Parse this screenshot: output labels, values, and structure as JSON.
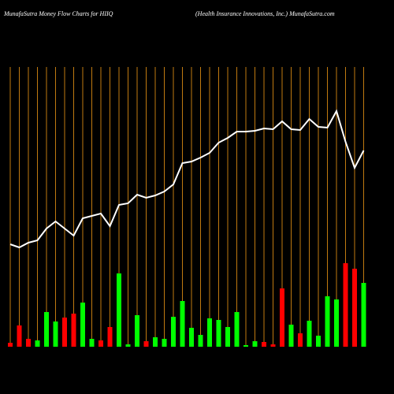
{
  "chart_data": {
    "type": "money-flow",
    "title": "MunafaSutra  Money Flow  Charts for HIIQ",
    "subtitle": "(Health Insurance   Innovations,  Inc.) MunafaSutra.com",
    "ylim": [
      0,
      355
    ],
    "grid_color": "#c07a10",
    "line_color": "#ffffff",
    "line": [
      130,
      126,
      132,
      135,
      150,
      159,
      150,
      141,
      163,
      166,
      169,
      153,
      180,
      182,
      193,
      189,
      192,
      197,
      206,
      233,
      235,
      240,
      246,
      259,
      265,
      273,
      273,
      274,
      277,
      276,
      286,
      276,
      275,
      289,
      279,
      278,
      299,
      260,
      227,
      249
    ],
    "bars": [
      5,
      27,
      10,
      8,
      44,
      32,
      37,
      42,
      56,
      10,
      8,
      25,
      93,
      3,
      40,
      7,
      12,
      10,
      38,
      58,
      24,
      15,
      36,
      34,
      25,
      44,
      2,
      7,
      6,
      3,
      74,
      28,
      17,
      33,
      14,
      64,
      60,
      106,
      99,
      81
    ],
    "bar_colors": [
      "#ff0000",
      "#ff0000",
      "#ff0000",
      "#00ff00",
      "#00ff00",
      "#00ff00",
      "#ff0000",
      "#ff0000",
      "#00ff00",
      "#00ff00",
      "#ff0000",
      "#ff0000",
      "#00ff00",
      "#00ff00",
      "#00ff00",
      "#ff0000",
      "#00ff00",
      "#00ff00",
      "#00ff00",
      "#00ff00",
      "#00ff00",
      "#00ff00",
      "#00ff00",
      "#00ff00",
      "#00ff00",
      "#00ff00",
      "#00ff00",
      "#00ff00",
      "#ff0000",
      "#ff0000",
      "#ff0000",
      "#00ff00",
      "#ff0000",
      "#00ff00",
      "#00ff00",
      "#00ff00",
      "#00ff00",
      "#ff0000",
      "#ff0000",
      "#00ff00"
    ]
  }
}
